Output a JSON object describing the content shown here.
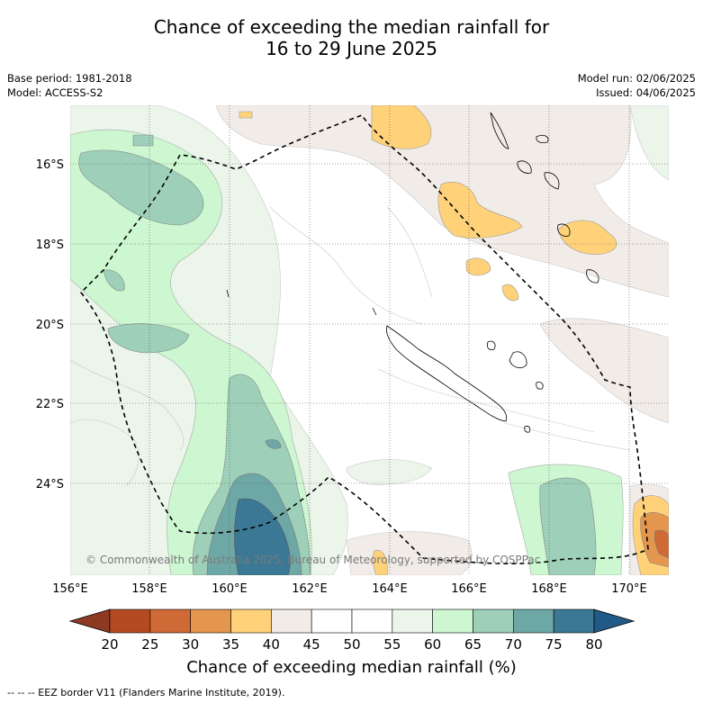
{
  "title_line1": "Chance of exceeding the median rainfall for",
  "title_line2": "16 to 29 June 2025",
  "meta": {
    "base_period": "Base period: 1981-2018",
    "model": "Model: ACCESS-S2",
    "model_run": "Model run: 02/06/2025",
    "issued": "Issued: 04/06/2025"
  },
  "axes": {
    "lon_ticks": [
      "156°E",
      "158°E",
      "160°E",
      "162°E",
      "164°E",
      "166°E",
      "168°E",
      "170°E"
    ],
    "lat_ticks": [
      "16°S",
      "18°S",
      "20°S",
      "22°S",
      "24°S"
    ]
  },
  "copyright": "© Commonwealth of Australia 2025, Bureau of Meteorology, supported by COSPPac",
  "colorbar": {
    "title": "Chance of exceeding median rainfall (%)",
    "labels": [
      "20",
      "25",
      "30",
      "35",
      "40",
      "45",
      "50",
      "55",
      "60",
      "65",
      "70",
      "75",
      "80"
    ],
    "colors": [
      "#8e3a22",
      "#b34a22",
      "#cf6a36",
      "#e4964e",
      "#ffd27a",
      "#f2ece8",
      "#ffffff",
      "#ffffff",
      "#ebf5ea",
      "#ccf7d0",
      "#9dcfb9",
      "#6ea8a6",
      "#3a7895",
      "#215a86"
    ]
  },
  "footer": "--  --  -- EEZ border V11 (Flanders Marine Institute, 2019)."
}
